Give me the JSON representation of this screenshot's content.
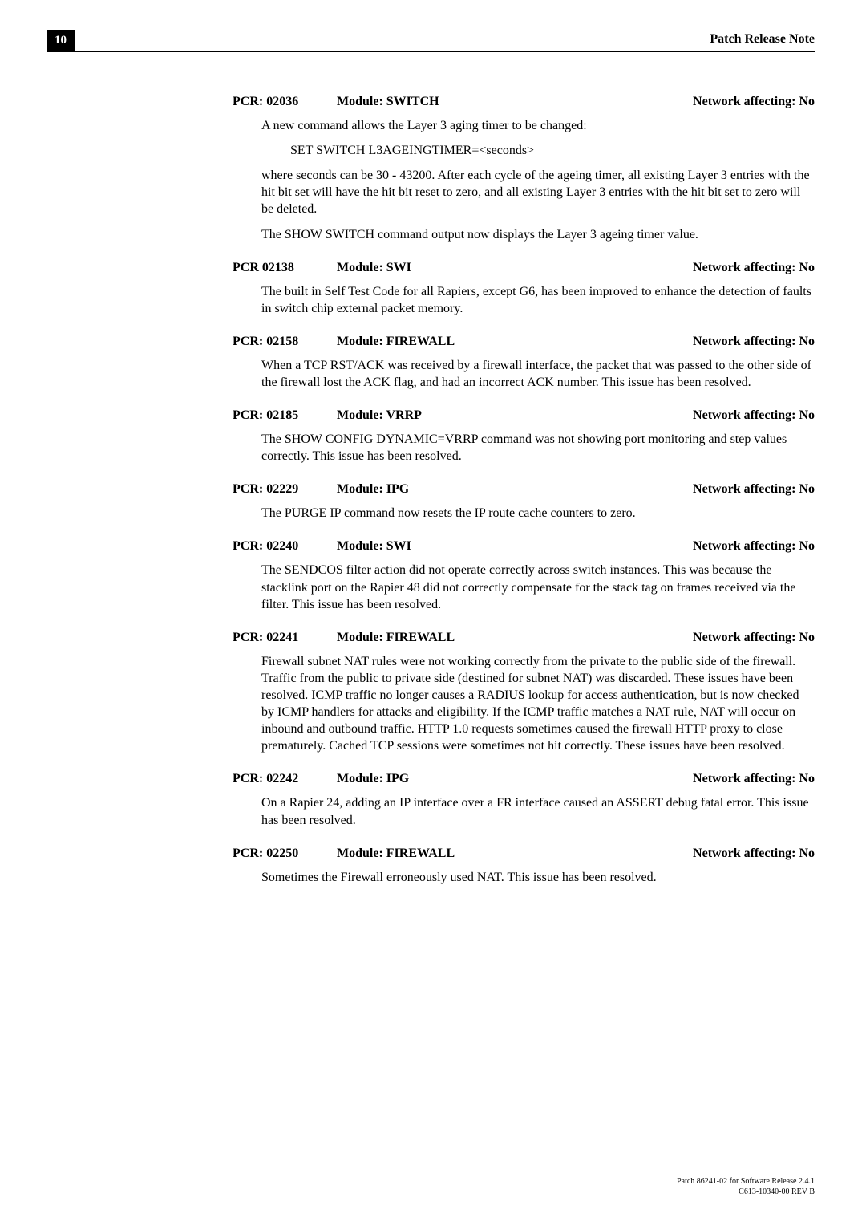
{
  "header": {
    "page_number": "10",
    "title": "Patch Release Note"
  },
  "entries": [
    {
      "id": "PCR: 02036",
      "module": "Module: SWITCH",
      "net": "Network affecting: No",
      "paras": [
        {
          "type": "body",
          "text": "A new command allows the Layer 3 aging timer to be changed:"
        },
        {
          "type": "cmd",
          "text": "SET SWITCH L3AGEINGTIMER=<seconds>"
        },
        {
          "type": "body",
          "text": "where seconds can be 30 - 43200. After each cycle of the ageing timer, all existing Layer 3 entries with the hit bit set will have the hit bit reset to zero, and all existing Layer 3 entries with the hit bit set to zero will be deleted."
        },
        {
          "type": "body",
          "text": "The SHOW SWITCH command output now displays the Layer 3 ageing timer value."
        }
      ]
    },
    {
      "id": "PCR 02138",
      "module": "Module: SWI",
      "net": "Network affecting: No",
      "paras": [
        {
          "type": "body",
          "text": "The built in Self Test Code for all Rapiers, except G6, has been improved to enhance the detection of faults in switch chip external packet memory."
        }
      ]
    },
    {
      "id": "PCR: 02158",
      "module": "Module: FIREWALL",
      "net": "Network affecting: No",
      "paras": [
        {
          "type": "body",
          "text": "When a TCP RST/ACK was received by a firewall interface, the packet that was passed to the other side of the firewall lost the ACK flag, and had an incorrect ACK number. This issue has been resolved."
        }
      ]
    },
    {
      "id": "PCR: 02185",
      "module": "Module: VRRP",
      "net": "Network affecting: No",
      "paras": [
        {
          "type": "body",
          "text": "The SHOW CONFIG DYNAMIC=VRRP command was not showing port monitoring and step values correctly. This issue has been resolved."
        }
      ]
    },
    {
      "id": "PCR: 02229",
      "module": "Module: IPG",
      "net": "Network affecting: No",
      "paras": [
        {
          "type": "body",
          "text": "The PURGE IP command now resets the IP route cache counters to zero."
        }
      ]
    },
    {
      "id": "PCR: 02240",
      "module": "Module: SWI",
      "net": "Network affecting: No",
      "paras": [
        {
          "type": "body",
          "text": "The SENDCOS filter action did not operate correctly across switch instances. This was because the stacklink port on the Rapier 48 did not correctly compensate for the stack tag on frames received via the filter. This issue has been resolved."
        }
      ]
    },
    {
      "id": "PCR: 02241",
      "module": "Module: FIREWALL",
      "net": "Network affecting: No",
      "paras": [
        {
          "type": "body",
          "text": "Firewall subnet NAT rules were not working correctly from the private to the public side of the firewall. Traffic from the public to private side (destined for subnet NAT) was discarded. These issues have been resolved. ICMP traffic no longer causes a RADIUS lookup for access authentication, but is now checked by ICMP handlers for attacks and eligibility. If the ICMP traffic matches a NAT rule, NAT will occur on inbound and outbound traffic. HTTP 1.0 requests sometimes caused the firewall HTTP proxy to close prematurely. Cached TCP sessions were sometimes not hit correctly. These issues have been resolved."
        }
      ]
    },
    {
      "id": "PCR: 02242",
      "module": "Module: IPG",
      "net": "Network affecting: No",
      "paras": [
        {
          "type": "body",
          "text": "On a Rapier 24, adding an IP interface over a FR interface caused an ASSERT debug fatal error. This issue has been resolved."
        }
      ]
    },
    {
      "id": "PCR: 02250",
      "module": "Module: FIREWALL",
      "net": "Network affecting: No",
      "paras": [
        {
          "type": "body",
          "text": "Sometimes the Firewall erroneously used NAT. This issue has been resolved."
        }
      ]
    }
  ],
  "footer": {
    "line1": "Patch 86241-02 for Software Release 2.4.1",
    "line2": "C613-10340-00 REV B"
  }
}
